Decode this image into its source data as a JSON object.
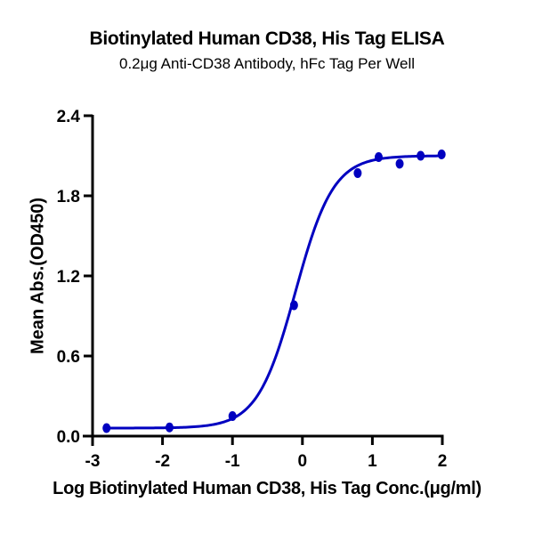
{
  "chart_data": {
    "type": "scatter",
    "title": "Biotinylated Human CD38, His Tag ELISA",
    "subtitle": "0.2μg Anti-CD38 Antibody, hFc Tag Per Well",
    "xlabel": "Log Biotinylated Human CD38, His Tag Conc.(μg/ml)",
    "ylabel": "Mean Abs.(OD450)",
    "xlim": [
      -3,
      2
    ],
    "ylim": [
      0,
      2.4
    ],
    "x_ticks": [
      "-3",
      "-2",
      "-1",
      "0",
      "1",
      "2"
    ],
    "y_ticks": [
      "0.0",
      "0.6",
      "1.2",
      "1.8",
      "2.4"
    ],
    "grid": false,
    "legend": null,
    "series": [
      {
        "name": "Biotinylated Human CD38, His Tag",
        "color": "#0000c0",
        "x": [
          -2.8,
          -1.9,
          -1.0,
          -0.12,
          0.79,
          1.09,
          1.39,
          1.69,
          1.99
        ],
        "y": [
          0.06,
          0.065,
          0.15,
          0.98,
          1.97,
          2.09,
          2.04,
          2.1,
          2.11
        ]
      }
    ],
    "fit_curve": {
      "model": "4PL",
      "bottom": 0.06,
      "top": 2.1,
      "log_ec50": -0.1,
      "hill_slope": 1.6,
      "x_range": [
        -2.8,
        2.0
      ]
    }
  }
}
